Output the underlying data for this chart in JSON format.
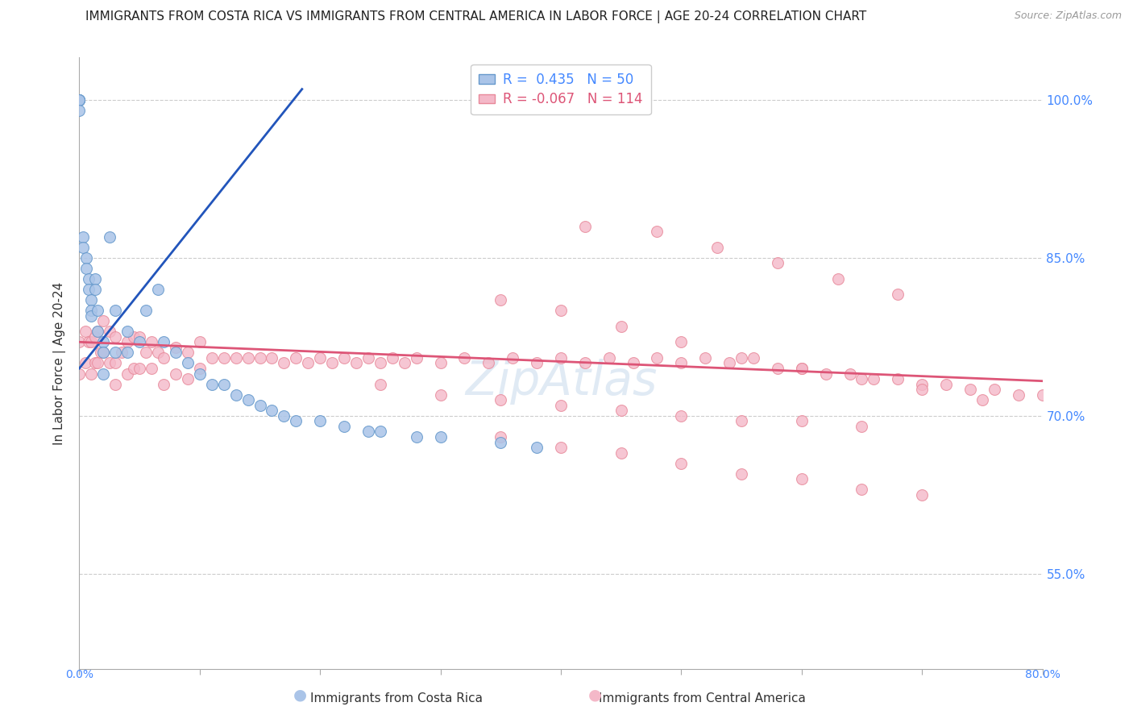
{
  "title": "IMMIGRANTS FROM COSTA RICA VS IMMIGRANTS FROM CENTRAL AMERICA IN LABOR FORCE | AGE 20-24 CORRELATION CHART",
  "source": "Source: ZipAtlas.com",
  "ylabel": "In Labor Force | Age 20-24",
  "xlim": [
    0.0,
    0.8
  ],
  "ylim": [
    0.46,
    1.04
  ],
  "y_tick_vals": [
    0.55,
    0.7,
    0.85,
    1.0
  ],
  "y_tick_labels": [
    "55.0%",
    "70.0%",
    "85.0%",
    "100.0%"
  ],
  "x_tick_vals": [
    0.0,
    0.1,
    0.2,
    0.3,
    0.4,
    0.5,
    0.6,
    0.7,
    0.8
  ],
  "legend_blue_label": "R =  0.435   N = 50",
  "legend_pink_label": "R = -0.067   N = 114",
  "blue_color": "#aac4e8",
  "blue_edge_color": "#6699cc",
  "pink_color": "#f4b8c8",
  "pink_edge_color": "#e8899a",
  "blue_line_color": "#2255bb",
  "pink_line_color": "#dd5577",
  "grid_color": "#cccccc",
  "background_color": "#ffffff",
  "title_fontsize": 11,
  "axis_label_fontsize": 11,
  "scatter_size": 100,
  "blue_scatter_x": [
    0.0,
    0.0,
    0.0,
    0.0,
    0.0,
    0.0,
    0.003,
    0.003,
    0.006,
    0.006,
    0.008,
    0.008,
    0.01,
    0.01,
    0.01,
    0.013,
    0.013,
    0.015,
    0.015,
    0.02,
    0.02,
    0.02,
    0.025,
    0.03,
    0.03,
    0.04,
    0.04,
    0.05,
    0.055,
    0.065,
    0.07,
    0.08,
    0.09,
    0.1,
    0.11,
    0.12,
    0.13,
    0.14,
    0.15,
    0.16,
    0.17,
    0.18,
    0.2,
    0.22,
    0.24,
    0.25,
    0.28,
    0.3,
    0.35,
    0.38
  ],
  "blue_scatter_y": [
    1.0,
    1.0,
    1.0,
    1.0,
    1.0,
    0.99,
    0.87,
    0.86,
    0.85,
    0.84,
    0.83,
    0.82,
    0.81,
    0.8,
    0.795,
    0.83,
    0.82,
    0.8,
    0.78,
    0.77,
    0.76,
    0.74,
    0.87,
    0.8,
    0.76,
    0.78,
    0.76,
    0.77,
    0.8,
    0.82,
    0.77,
    0.76,
    0.75,
    0.74,
    0.73,
    0.73,
    0.72,
    0.715,
    0.71,
    0.705,
    0.7,
    0.695,
    0.695,
    0.69,
    0.685,
    0.685,
    0.68,
    0.68,
    0.675,
    0.67
  ],
  "pink_scatter_x": [
    0.0,
    0.0,
    0.005,
    0.005,
    0.008,
    0.01,
    0.01,
    0.013,
    0.013,
    0.015,
    0.015,
    0.018,
    0.02,
    0.02,
    0.025,
    0.025,
    0.03,
    0.03,
    0.03,
    0.035,
    0.04,
    0.04,
    0.045,
    0.045,
    0.05,
    0.05,
    0.055,
    0.06,
    0.06,
    0.065,
    0.07,
    0.07,
    0.08,
    0.08,
    0.09,
    0.09,
    0.1,
    0.1,
    0.11,
    0.12,
    0.13,
    0.14,
    0.15,
    0.16,
    0.17,
    0.18,
    0.19,
    0.2,
    0.21,
    0.22,
    0.23,
    0.24,
    0.25,
    0.26,
    0.27,
    0.28,
    0.3,
    0.32,
    0.34,
    0.36,
    0.38,
    0.4,
    0.42,
    0.44,
    0.46,
    0.48,
    0.5,
    0.52,
    0.54,
    0.56,
    0.58,
    0.6,
    0.62,
    0.64,
    0.66,
    0.68,
    0.7,
    0.72,
    0.74,
    0.76,
    0.78,
    0.8,
    0.35,
    0.4,
    0.45,
    0.5,
    0.55,
    0.6,
    0.65,
    0.7,
    0.75,
    0.42,
    0.48,
    0.53,
    0.58,
    0.63,
    0.68,
    0.35,
    0.4,
    0.45,
    0.5,
    0.55,
    0.6,
    0.65,
    0.7,
    0.25,
    0.3,
    0.35,
    0.4,
    0.45,
    0.5,
    0.55,
    0.6,
    0.65
  ],
  "pink_scatter_y": [
    0.77,
    0.74,
    0.78,
    0.75,
    0.77,
    0.77,
    0.74,
    0.775,
    0.75,
    0.78,
    0.75,
    0.76,
    0.79,
    0.76,
    0.78,
    0.75,
    0.775,
    0.75,
    0.73,
    0.76,
    0.77,
    0.74,
    0.775,
    0.745,
    0.775,
    0.745,
    0.76,
    0.77,
    0.745,
    0.76,
    0.755,
    0.73,
    0.765,
    0.74,
    0.76,
    0.735,
    0.77,
    0.745,
    0.755,
    0.755,
    0.755,
    0.755,
    0.755,
    0.755,
    0.75,
    0.755,
    0.75,
    0.755,
    0.75,
    0.755,
    0.75,
    0.755,
    0.75,
    0.755,
    0.75,
    0.755,
    0.75,
    0.755,
    0.75,
    0.755,
    0.75,
    0.755,
    0.75,
    0.755,
    0.75,
    0.755,
    0.75,
    0.755,
    0.75,
    0.755,
    0.745,
    0.745,
    0.74,
    0.74,
    0.735,
    0.735,
    0.73,
    0.73,
    0.725,
    0.725,
    0.72,
    0.72,
    0.81,
    0.8,
    0.785,
    0.77,
    0.755,
    0.745,
    0.735,
    0.725,
    0.715,
    0.88,
    0.875,
    0.86,
    0.845,
    0.83,
    0.815,
    0.68,
    0.67,
    0.665,
    0.655,
    0.645,
    0.64,
    0.63,
    0.625,
    0.73,
    0.72,
    0.715,
    0.71,
    0.705,
    0.7,
    0.695,
    0.695,
    0.69
  ],
  "blue_line_x": [
    0.0,
    0.185
  ],
  "blue_line_y": [
    0.745,
    1.01
  ],
  "pink_line_x": [
    0.0,
    0.8
  ],
  "pink_line_y": [
    0.77,
    0.733
  ],
  "watermark_text": "ZipAtlas",
  "watermark_color": "#99bbdd",
  "watermark_alpha": 0.3
}
